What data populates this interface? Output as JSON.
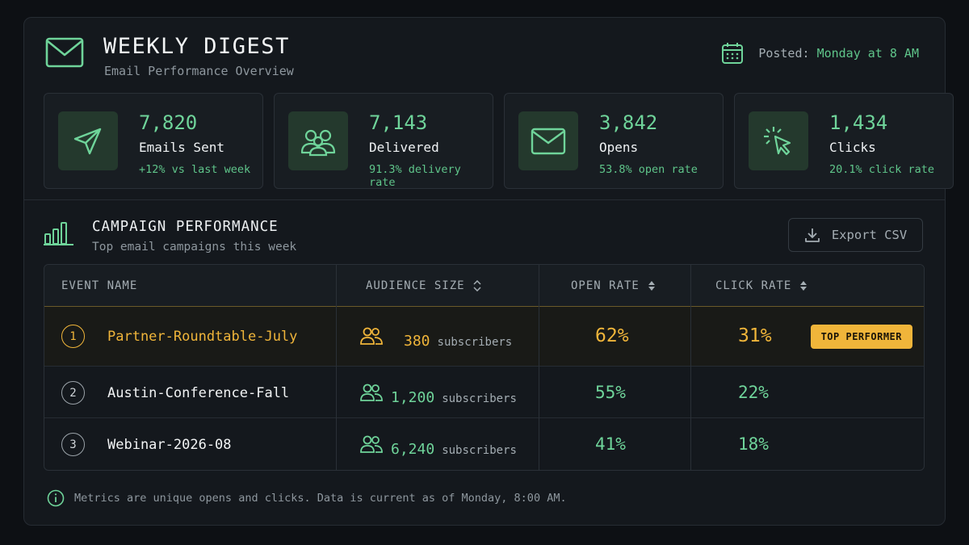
{
  "header": {
    "title": "WEEKLY DIGEST",
    "subtitle": "Email Performance Overview",
    "icon": "mail-icon",
    "posted_label": "Posted:",
    "posted_value": "Monday at 8 AM"
  },
  "stats": [
    {
      "icon": "send-icon",
      "value": "7,820",
      "label": "Emails Sent",
      "sub": "+12% vs last week"
    },
    {
      "icon": "users-icon",
      "value": "7,143",
      "label": "Delivered",
      "sub": "91.3% delivery rate"
    },
    {
      "icon": "mail-icon",
      "value": "3,842",
      "label": "Opens",
      "sub": "53.8% open rate"
    },
    {
      "icon": "cursor-click-icon",
      "value": "1,434",
      "label": "Clicks",
      "sub": "20.1% click rate"
    }
  ],
  "campaigns": {
    "title": "CAMPAIGN PERFORMANCE",
    "subtitle": "Top email campaigns this week",
    "export_label": "Export CSV",
    "columns": [
      "EVENT NAME",
      "AUDIENCE SIZE",
      "OPEN RATE",
      "CLICK RATE"
    ],
    "rows": [
      {
        "rank": "1",
        "name": "Partner-Roundtable-July",
        "audience": "380",
        "unit": "subscribers",
        "open_rate": "62%",
        "click_rate": "31%",
        "badge": "TOP PERFORMER"
      },
      {
        "rank": "2",
        "name": "Austin-Conference-Fall",
        "audience": "1,200",
        "unit": "subscribers",
        "open_rate": "55%",
        "click_rate": "22%"
      },
      {
        "rank": "3",
        "name": "Webinar-2026-08",
        "audience": "6,240",
        "unit": "subscribers",
        "open_rate": "41%",
        "click_rate": "18%"
      }
    ]
  },
  "footnote": "Metrics are unique opens and clicks. Data is current as of Monday, 8:00 AM.",
  "colors": {
    "accent": "#6fd49a",
    "highlight": "#f0b53a",
    "background": "#14181d"
  }
}
